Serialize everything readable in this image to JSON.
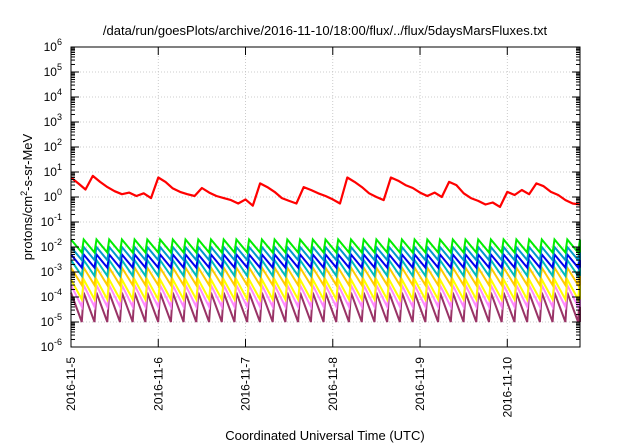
{
  "chart_data": {
    "type": "line",
    "title": "/data/run/goesPlots/archive/2016-11-10/18:00/flux/../flux/5daysMarsFluxes.txt",
    "xlabel": "Coordinated Universal Time (UTC)",
    "ylabel": "protons/cm2-s-sr-MeV",
    "ylabel_parts": {
      "pre": "protons/cm",
      "sup": "2",
      "post": "-s-sr-MeV"
    },
    "xscale": "time",
    "yscale": "log",
    "xlim": [
      "2016-11-05",
      "2016-11-10T20:00"
    ],
    "ylim": [
      1e-06,
      1000000.0
    ],
    "grid": true,
    "legend": "none",
    "x_ticks": [
      "2016-11-5",
      "2016-11-6",
      "2016-11-7",
      "2016-11-8",
      "2016-11-9",
      "2016-11-10"
    ],
    "y_ticks": [
      {
        "base": "10",
        "exp": "-6"
      },
      {
        "base": "10",
        "exp": "-5"
      },
      {
        "base": "10",
        "exp": "-4"
      },
      {
        "base": "10",
        "exp": "-3"
      },
      {
        "base": "10",
        "exp": "-2"
      },
      {
        "base": "10",
        "exp": "-1"
      },
      {
        "base": "10",
        "exp": "0"
      },
      {
        "base": "10",
        "exp": "1"
      },
      {
        "base": "10",
        "exp": "2"
      },
      {
        "base": "10",
        "exp": "3"
      },
      {
        "base": "10",
        "exp": "4"
      },
      {
        "base": "10",
        "exp": "5"
      },
      {
        "base": "10",
        "exp": "6"
      }
    ],
    "series": [
      {
        "color": "#ff0000",
        "x": [
          "2016-11-05T00:00",
          "2016-11-05T02:00",
          "2016-11-05T04:00",
          "2016-11-05T06:00",
          "2016-11-05T08:00",
          "2016-11-05T10:00",
          "2016-11-05T12:00",
          "2016-11-05T14:00",
          "2016-11-05T16:00",
          "2016-11-05T18:00",
          "2016-11-05T20:00",
          "2016-11-05T22:00",
          "2016-11-06T00:00",
          "2016-11-06T02:00",
          "2016-11-06T04:00",
          "2016-11-06T06:00",
          "2016-11-06T08:00",
          "2016-11-06T10:00",
          "2016-11-06T12:00",
          "2016-11-06T14:00",
          "2016-11-06T16:00",
          "2016-11-06T18:00",
          "2016-11-06T20:00",
          "2016-11-06T22:00",
          "2016-11-07T00:00",
          "2016-11-07T02:00",
          "2016-11-07T04:00",
          "2016-11-07T06:00",
          "2016-11-07T08:00",
          "2016-11-07T10:00",
          "2016-11-07T12:00",
          "2016-11-07T14:00",
          "2016-11-07T16:00",
          "2016-11-07T18:00",
          "2016-11-07T20:00",
          "2016-11-07T22:00",
          "2016-11-08T00:00",
          "2016-11-08T02:00",
          "2016-11-08T04:00",
          "2016-11-08T06:00",
          "2016-11-08T08:00",
          "2016-11-08T10:00",
          "2016-11-08T12:00",
          "2016-11-08T14:00",
          "2016-11-08T16:00",
          "2016-11-08T18:00",
          "2016-11-08T20:00",
          "2016-11-08T22:00",
          "2016-11-09T00:00",
          "2016-11-09T02:00",
          "2016-11-09T04:00",
          "2016-11-09T06:00",
          "2016-11-09T08:00",
          "2016-11-09T10:00",
          "2016-11-09T12:00",
          "2016-11-09T14:00",
          "2016-11-09T16:00",
          "2016-11-09T18:00",
          "2016-11-09T20:00",
          "2016-11-09T22:00",
          "2016-11-10T00:00",
          "2016-11-10T02:00",
          "2016-11-10T04:00",
          "2016-11-10T06:00",
          "2016-11-10T08:00",
          "2016-11-10T10:00",
          "2016-11-10T12:00",
          "2016-11-10T14:00",
          "2016-11-10T16:00",
          "2016-11-10T18:00",
          "2016-11-10T20:00"
        ],
        "values": [
          6,
          3.5,
          2,
          7,
          4,
          2.5,
          1.7,
          1.3,
          1.5,
          1.1,
          1.4,
          0.9,
          6,
          4,
          2.2,
          1.6,
          1.3,
          1.1,
          2.3,
          1.5,
          1.1,
          0.9,
          0.75,
          0.55,
          0.8,
          0.45,
          3.5,
          2.5,
          1.6,
          0.9,
          0.7,
          0.55,
          2.5,
          1.9,
          1.4,
          1.1,
          0.8,
          0.55,
          6,
          4,
          2.5,
          1.4,
          1,
          0.75,
          6,
          4.5,
          3,
          2.3,
          1.5,
          1.1,
          1.5,
          1,
          4,
          3,
          1.4,
          0.9,
          0.7,
          0.5,
          0.6,
          0.4,
          1.6,
          1.2,
          1.9,
          1.3,
          3.5,
          2.7,
          1.6,
          1.2,
          0.75,
          0.55,
          0.5
        ]
      }
    ],
    "oscillating_series": [
      {
        "color": "#00ee00",
        "high": 0.02,
        "low": 0.006
      },
      {
        "color": "#0099cc",
        "high": 0.01,
        "low": 0.003
      },
      {
        "color": "#0000ee",
        "high": 0.005,
        "low": 0.0015
      },
      {
        "color": "#00bbbb",
        "high": 0.003,
        "low": 0.0007
      },
      {
        "color": "#ffcc00",
        "high": 0.0015,
        "low": 0.0003
      },
      {
        "color": "#ffff00",
        "high": 0.0005,
        "low": 8e-05
      },
      {
        "color": "#ff88ff",
        "high": 0.0003,
        "low": 4e-05
      },
      {
        "color": "#993366",
        "high": 0.00015,
        "low": 1e-05
      }
    ]
  }
}
